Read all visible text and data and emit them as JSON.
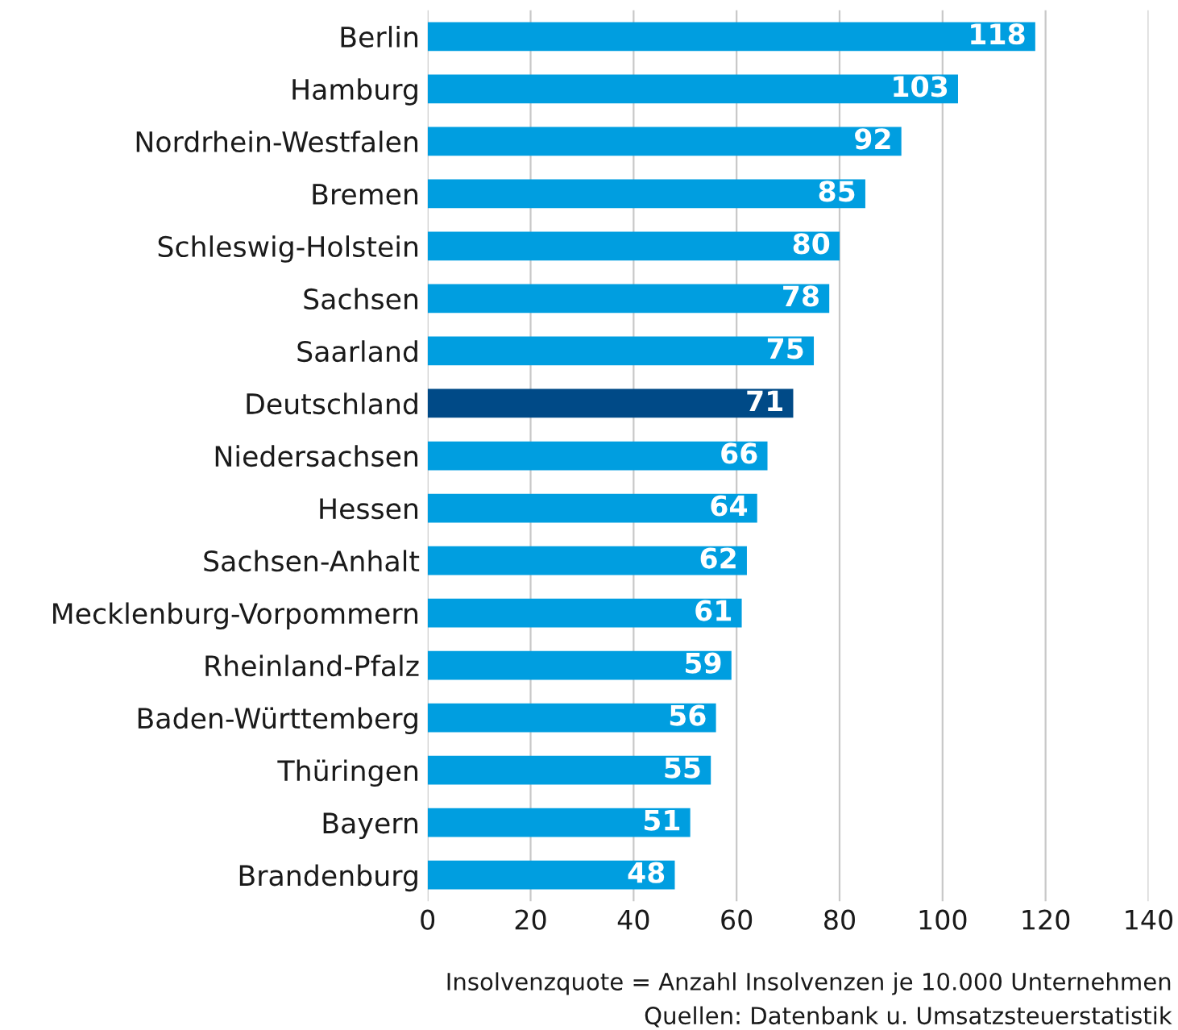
{
  "chart_data": {
    "type": "bar",
    "orientation": "horizontal",
    "categories": [
      "Berlin",
      "Hamburg",
      "Nordrhein-Westfalen",
      "Bremen",
      "Schleswig-Holstein",
      "Sachsen",
      "Saarland",
      "Deutschland",
      "Niedersachsen",
      "Hessen",
      "Sachsen-Anhalt",
      "Mecklenburg-Vorpommern",
      "Rheinland-Pfalz",
      "Baden-Württemberg",
      "Thüringen",
      "Bayern",
      "Brandenburg"
    ],
    "values": [
      118,
      103,
      92,
      85,
      80,
      78,
      75,
      71,
      66,
      64,
      62,
      61,
      59,
      56,
      55,
      51,
      48
    ],
    "colors": [
      "#009ee0",
      "#009ee0",
      "#009ee0",
      "#009ee0",
      "#009ee0",
      "#009ee0",
      "#009ee0",
      "#004a87",
      "#009ee0",
      "#009ee0",
      "#009ee0",
      "#009ee0",
      "#009ee0",
      "#009ee0",
      "#009ee0",
      "#009ee0",
      "#009ee0"
    ],
    "xlim": [
      0,
      140
    ],
    "xticks": [
      0,
      20,
      40,
      60,
      80,
      100,
      120,
      140
    ],
    "grid": "x",
    "data_labels": true,
    "annotations": [
      "Insolvenzquote = Anzahl Insolvenzen je 10.000 Unternehmen",
      "Quellen: Datenbank u. Umsatzsteuerstatistik"
    ]
  }
}
